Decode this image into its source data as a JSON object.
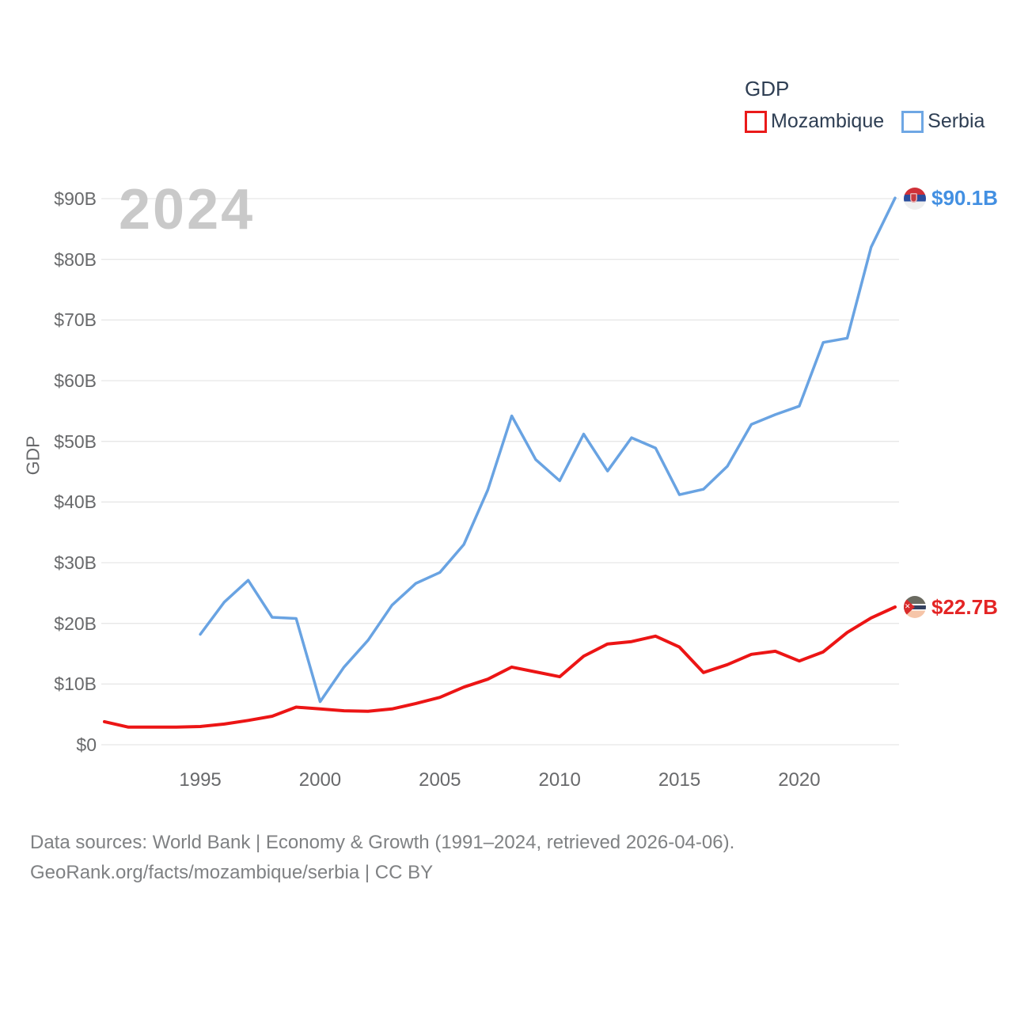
{
  "watermark": "2024",
  "legend": {
    "title": "GDP",
    "items": [
      {
        "label": "Mozambique",
        "color": "#ea1a1a"
      },
      {
        "label": "Serbia",
        "color": "#6ea7e4"
      }
    ]
  },
  "y_axis": {
    "title": "GDP",
    "tick_values": [
      0,
      10,
      20,
      30,
      40,
      50,
      60,
      70,
      80,
      90
    ],
    "tick_labels": [
      "$0",
      "$10B",
      "$20B",
      "$30B",
      "$40B",
      "$50B",
      "$60B",
      "$70B",
      "$80B",
      "$90B"
    ]
  },
  "x_axis": {
    "tick_values": [
      1995,
      2000,
      2005,
      2010,
      2015,
      2020
    ],
    "tick_labels": [
      "1995",
      "2000",
      "2005",
      "2010",
      "2015",
      "2020"
    ]
  },
  "end_labels": [
    {
      "series": "Serbia",
      "text": "$90.1B",
      "color": "#4390e2"
    },
    {
      "series": "Mozambique",
      "text": "$22.7B",
      "color": "#e42525"
    }
  ],
  "footer": {
    "line1": "Data sources: World Bank | Economy & Growth (1991–2024, retrieved 2026-04-06).",
    "line2": "GeoRank.org/facts/mozambique/serbia | CC BY"
  },
  "chart_data": {
    "type": "line",
    "title": "GDP",
    "xlabel": "",
    "ylabel": "GDP",
    "x_range": [
      1991,
      2024
    ],
    "ylim": [
      0,
      95
    ],
    "grid": "horizontal",
    "legend_position": "top-right",
    "series": [
      {
        "name": "Mozambique",
        "color": "#ec1515",
        "x": [
          1991,
          1992,
          1993,
          1994,
          1995,
          1996,
          1997,
          1998,
          1999,
          2000,
          2001,
          2002,
          2003,
          2004,
          2005,
          2006,
          2007,
          2008,
          2009,
          2010,
          2011,
          2012,
          2013,
          2014,
          2015,
          2016,
          2017,
          2018,
          2019,
          2020,
          2021,
          2022,
          2023,
          2024
        ],
        "values": [
          3.8,
          2.9,
          2.9,
          2.9,
          3.0,
          3.4,
          4.0,
          4.7,
          6.2,
          5.9,
          5.6,
          5.5,
          5.9,
          6.8,
          7.8,
          9.5,
          10.8,
          12.8,
          12.0,
          11.2,
          14.6,
          16.6,
          17.0,
          17.9,
          16.1,
          11.9,
          13.2,
          14.9,
          15.4,
          13.8,
          15.3,
          18.5,
          20.9,
          22.7
        ]
      },
      {
        "name": "Serbia",
        "color": "#69a3e2",
        "x": [
          1995,
          1996,
          1997,
          1998,
          1999,
          2000,
          2001,
          2002,
          2003,
          2004,
          2005,
          2006,
          2007,
          2008,
          2009,
          2010,
          2011,
          2012,
          2013,
          2014,
          2015,
          2016,
          2017,
          2018,
          2019,
          2020,
          2021,
          2022,
          2023,
          2024
        ],
        "values": [
          18.2,
          23.5,
          27.1,
          21.0,
          20.8,
          7.1,
          12.8,
          17.2,
          23.0,
          26.6,
          28.4,
          33.0,
          42.0,
          54.2,
          47.0,
          43.5,
          51.2,
          45.1,
          50.6,
          48.9,
          41.2,
          42.1,
          45.9,
          52.8,
          54.4,
          55.8,
          66.3,
          67.0,
          82.0,
          90.1
        ]
      }
    ]
  }
}
